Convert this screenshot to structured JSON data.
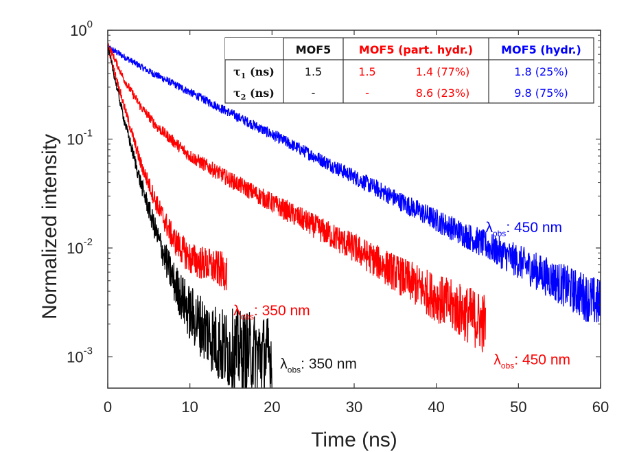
{
  "chart_data": {
    "type": "line",
    "xlabel": "Time (ns)",
    "ylabel": "Normalized intensity",
    "xlim": [
      0,
      60
    ],
    "ylim": [
      0.0005,
      1
    ],
    "yscale": "log",
    "grid": false,
    "x_ticks": [
      "0",
      "10",
      "20",
      "30",
      "40",
      "50",
      "60"
    ],
    "y_ticks": [
      {
        "base": "10",
        "exp": "0"
      },
      {
        "base": "10",
        "exp": "-1"
      },
      {
        "base": "10",
        "exp": "-2"
      },
      {
        "base": "10",
        "exp": "-3"
      }
    ],
    "series": [
      {
        "color": "#0000ff",
        "x": [
          0,
          5,
          10,
          20,
          30,
          40,
          50,
          60
        ],
        "y": [
          0.7,
          0.42,
          0.27,
          0.11,
          0.045,
          0.018,
          0.0075,
          0.003
        ]
      },
      {
        "color": "#ff0000",
        "x": [
          0,
          2,
          4,
          6,
          10,
          15,
          20,
          30,
          40,
          46
        ],
        "y": [
          0.75,
          0.35,
          0.2,
          0.13,
          0.07,
          0.042,
          0.026,
          0.01,
          0.0035,
          0.002
        ]
      },
      {
        "color": "#ff0000",
        "x": [
          0,
          2,
          4,
          6,
          8,
          10,
          14.5
        ],
        "y": [
          0.7,
          0.2,
          0.06,
          0.025,
          0.012,
          0.008,
          0.006
        ]
      },
      {
        "color": "#000000",
        "x": [
          0,
          2,
          4,
          6,
          8,
          10,
          14,
          20
        ],
        "y": [
          0.7,
          0.15,
          0.04,
          0.013,
          0.005,
          0.0025,
          0.0012,
          0.001
        ]
      }
    ],
    "annotations": [
      {
        "lambda": "λ",
        "sub": "obs",
        "text": ": 450 nm",
        "color": "#0000ff",
        "x": 46,
        "y": 0.014
      },
      {
        "lambda": "λ",
        "sub": "obs",
        "text": ": 350 nm",
        "color": "#ff0000",
        "x": 15.3,
        "y": 0.0024
      },
      {
        "lambda": "λ",
        "sub": "obs",
        "text": ": 350 nm",
        "color": "#111111",
        "x": 21,
        "y": 0.00078
      },
      {
        "lambda": "λ",
        "sub": "obs",
        "text": ": 450 nm",
        "color": "#ff0000",
        "x": 47,
        "y": 0.00085
      }
    ],
    "table": {
      "headers": [
        {
          "text": "MOF5",
          "color": "#111111"
        },
        {
          "text": "MOF5 (part. hydr.)",
          "color": "#ff0000"
        },
        {
          "text": "MOF5 (hydr.)",
          "color": "#0000ff"
        }
      ],
      "rows": [
        {
          "label": "τ",
          "sub": "1",
          "unit": " (ns)",
          "cells": [
            {
              "text": "1.5",
              "color": "#111111"
            },
            {
              "text": "1.5",
              "color": "#ff0000"
            },
            {
              "text": "1.4 (77%)",
              "color": "#ff0000"
            },
            {
              "text": "1.8 (25%)",
              "color": "#0000ff"
            }
          ]
        },
        {
          "label": "τ",
          "sub": "2",
          "unit": " (ns)",
          "cells": [
            {
              "text": "-",
              "color": "#111111"
            },
            {
              "text": "-",
              "color": "#ff0000"
            },
            {
              "text": "8.6 (23%)",
              "color": "#ff0000"
            },
            {
              "text": "9.8 (75%)",
              "color": "#0000ff"
            }
          ]
        }
      ]
    }
  }
}
